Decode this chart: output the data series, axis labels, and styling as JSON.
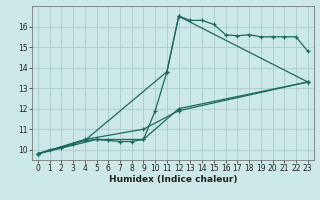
{
  "title": "",
  "xlabel": "Humidex (Indice chaleur)",
  "background_color": "#cce8e8",
  "grid_color": "#aacccc",
  "line_color": "#1a6b5e",
  "xlim": [
    -0.5,
    23.5
  ],
  "ylim": [
    9.5,
    17.0
  ],
  "xticks": [
    0,
    1,
    2,
    3,
    4,
    5,
    6,
    7,
    8,
    9,
    10,
    11,
    12,
    13,
    14,
    15,
    16,
    17,
    18,
    19,
    20,
    21,
    22,
    23
  ],
  "yticks": [
    10,
    11,
    12,
    13,
    14,
    15,
    16
  ],
  "series1": [
    [
      0,
      9.8
    ],
    [
      1,
      10.0
    ],
    [
      2,
      10.1
    ],
    [
      3,
      10.3
    ],
    [
      4,
      10.45
    ],
    [
      5,
      10.5
    ],
    [
      6,
      10.45
    ],
    [
      7,
      10.4
    ],
    [
      8,
      10.4
    ],
    [
      9,
      10.5
    ],
    [
      10,
      11.9
    ],
    [
      11,
      13.8
    ],
    [
      12,
      16.5
    ],
    [
      13,
      16.3
    ],
    [
      14,
      16.3
    ],
    [
      15,
      16.1
    ],
    [
      16,
      15.6
    ],
    [
      17,
      15.55
    ],
    [
      18,
      15.6
    ],
    [
      19,
      15.5
    ],
    [
      20,
      15.5
    ],
    [
      21,
      15.5
    ],
    [
      22,
      15.5
    ],
    [
      23,
      14.8
    ]
  ],
  "series2": [
    [
      0,
      9.8
    ],
    [
      4,
      10.45
    ],
    [
      11,
      13.8
    ],
    [
      12,
      16.5
    ],
    [
      23,
      13.3
    ]
  ],
  "series3": [
    [
      0,
      9.8
    ],
    [
      4,
      10.5
    ],
    [
      9,
      11.0
    ],
    [
      12,
      11.9
    ],
    [
      23,
      13.3
    ]
  ],
  "series4": [
    [
      0,
      9.8
    ],
    [
      5,
      10.5
    ],
    [
      9,
      10.5
    ],
    [
      12,
      12.0
    ],
    [
      23,
      13.3
    ]
  ],
  "tick_fontsize": 5.5,
  "xlabel_fontsize": 6.5,
  "marker_size": 2.5,
  "line_width": 0.9
}
